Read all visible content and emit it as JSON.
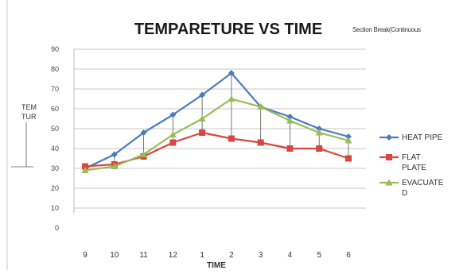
{
  "chart_data": {
    "type": "line",
    "title": "TEMPARETURE VS TIME",
    "annotation": "Section Break(Continuous",
    "xlabel": "TIME",
    "ylabel_lines": [
      "TEM",
      "TUR"
    ],
    "categories": [
      "9",
      "10",
      "11",
      "12",
      "1",
      "2",
      "3",
      "4",
      "5",
      "6"
    ],
    "y_ticks": [
      "0",
      "10",
      "20",
      "30",
      "40",
      "50",
      "60",
      "70",
      "80",
      "90"
    ],
    "ylim": [
      0,
      90
    ],
    "grid": true,
    "legend_position": "right",
    "series": [
      {
        "name": "HEAT PIPE",
        "legend_lines": [
          "HEAT PIPE"
        ],
        "color": "#4a7ebb",
        "marker": "diamond",
        "values": [
          30,
          37,
          48,
          57,
          67,
          78,
          61,
          56,
          50,
          46
        ]
      },
      {
        "name": "FLAT PLATE",
        "legend_lines": [
          "FLAT",
          "PLATE"
        ],
        "color": "#d9453f",
        "marker": "square",
        "values": [
          31,
          32,
          36,
          43,
          48,
          45,
          43,
          40,
          40,
          35
        ]
      },
      {
        "name": "EVACUATED",
        "legend_lines": [
          "EVACUATE",
          "D"
        ],
        "color": "#9bbb59",
        "marker": "triangle",
        "values": [
          29,
          31,
          37,
          47,
          55,
          65,
          61,
          54,
          48,
          44
        ]
      }
    ]
  }
}
